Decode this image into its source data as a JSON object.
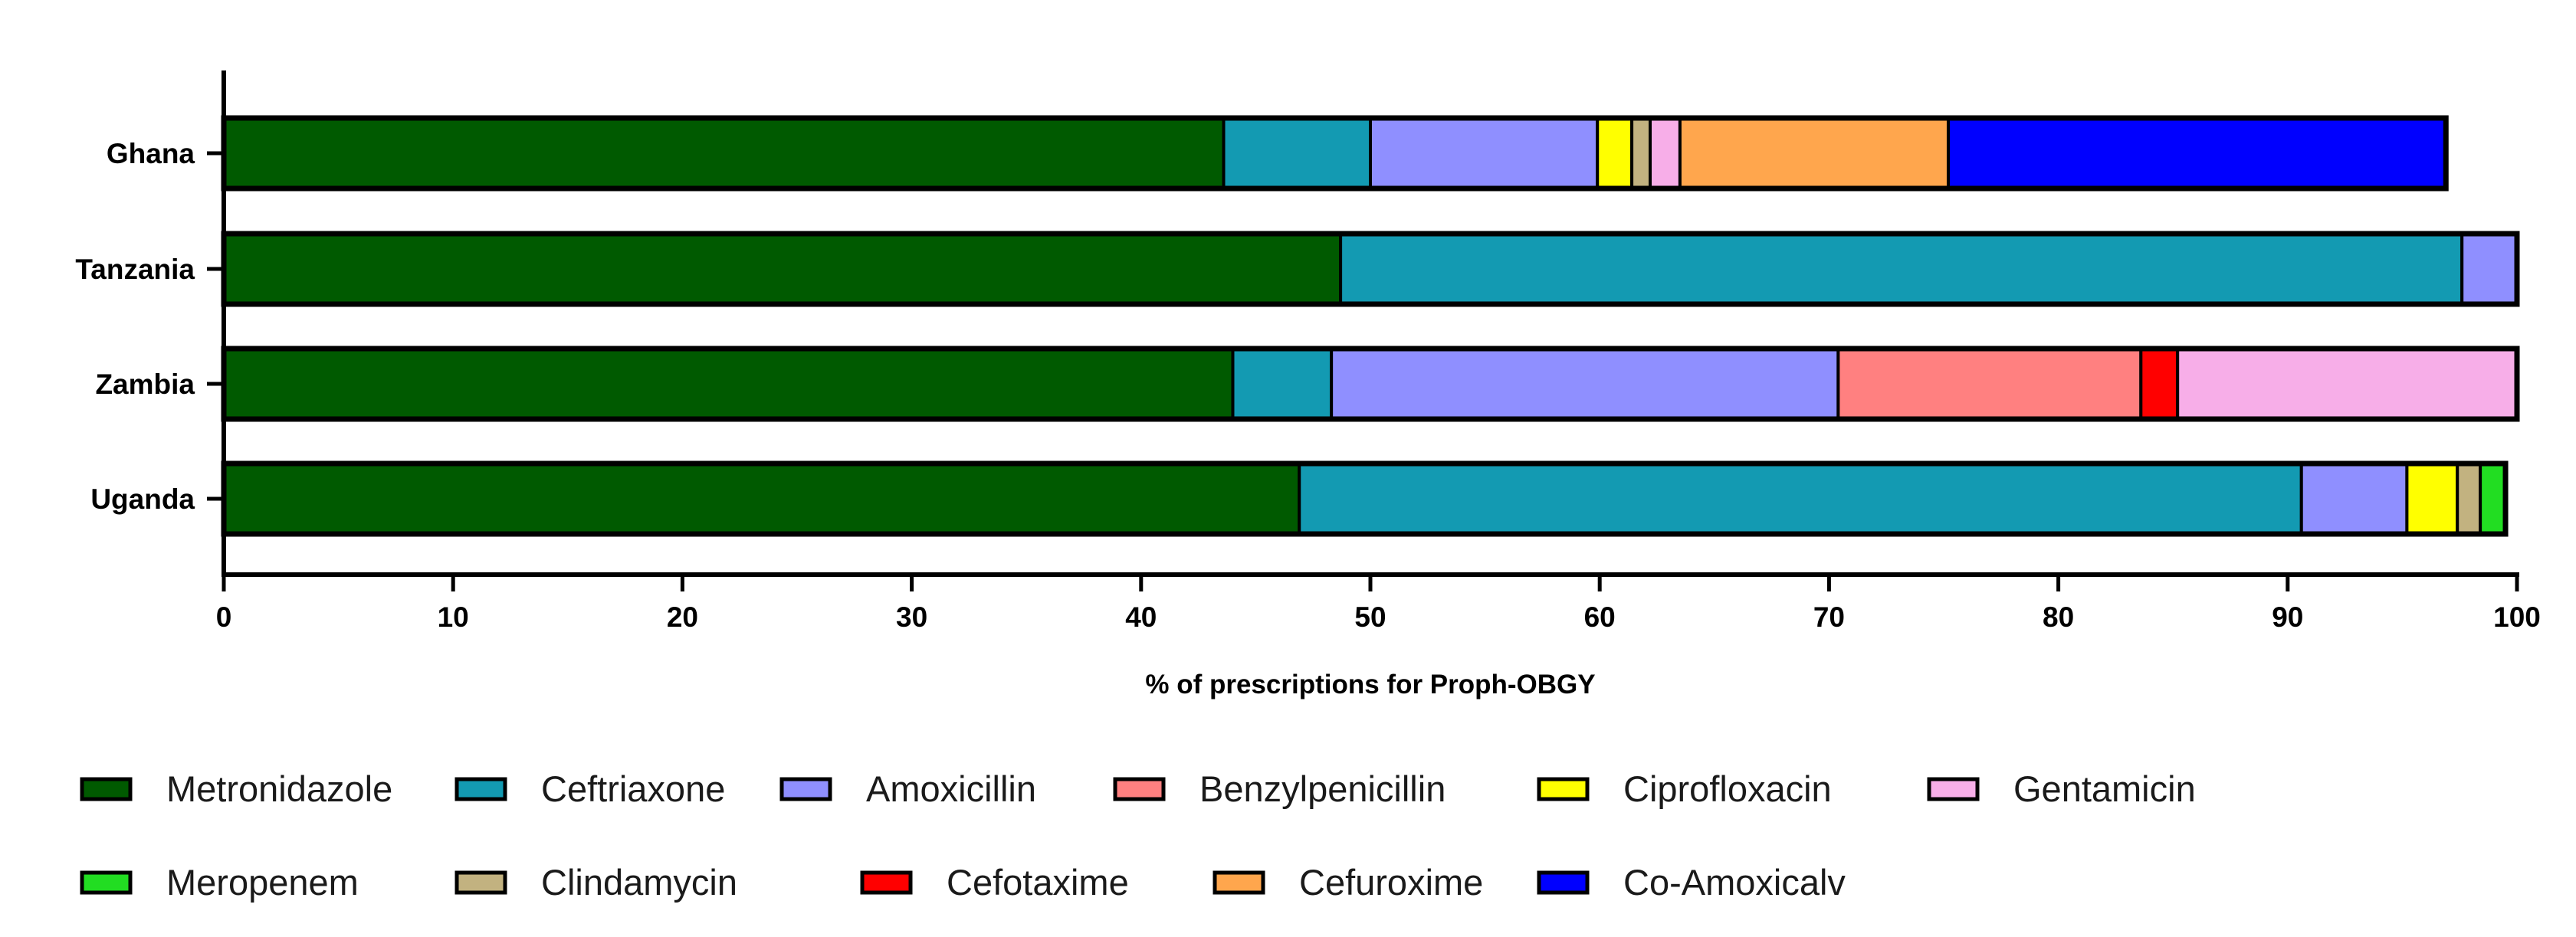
{
  "chart_data": {
    "type": "bar",
    "orientation": "horizontal",
    "stacked": true,
    "categories": [
      "Ghana",
      "Tanzania",
      "Zambia",
      "Uganda"
    ],
    "series": [
      {
        "name": "Metronidazole",
        "color": "#005a00",
        "values": [
          43.6,
          48.7,
          44.0,
          46.9
        ]
      },
      {
        "name": "Ceftriaxone",
        "color": "#139ab2",
        "values": [
          6.4,
          48.9,
          4.3,
          43.7
        ]
      },
      {
        "name": "Amoxicillin",
        "color": "#8f8fff",
        "values": [
          9.9,
          2.4,
          22.1,
          4.6
        ]
      },
      {
        "name": "Benzylpenicillin",
        "color": "#ff8080",
        "values": [
          0,
          0,
          13.2,
          0
        ]
      },
      {
        "name": "Ciprofloxacin",
        "color": "#ffff00",
        "values": [
          1.5,
          0,
          0,
          2.2
        ]
      },
      {
        "name": "Gentamicin",
        "color": "#f7aee8",
        "values": [
          1.3,
          0,
          14.8,
          0
        ]
      },
      {
        "name": "Meropenem",
        "color": "#22dd22",
        "values": [
          0,
          0,
          0,
          1.1
        ]
      },
      {
        "name": "Clindamycin",
        "color": "#c2b280",
        "values": [
          0.8,
          0,
          0,
          1.0
        ]
      },
      {
        "name": "Cefotaxime",
        "color": "#ff0000",
        "values": [
          0,
          0,
          1.6,
          0
        ]
      },
      {
        "name": "Cefuroxime",
        "color": "#ffa64d",
        "values": [
          11.7,
          0,
          0,
          0
        ]
      },
      {
        "name": "Co-Amoxicalv",
        "color": "#0000ff",
        "values": [
          21.7,
          0,
          0,
          0
        ]
      }
    ],
    "stack_order": [
      [
        "Metronidazole",
        "Ceftriaxone",
        "Amoxicillin",
        "Ciprofloxacin",
        "Clindamycin",
        "Gentamicin",
        "Cefuroxime",
        "Co-Amoxicalv"
      ],
      [
        "Metronidazole",
        "Ceftriaxone",
        "Amoxicillin"
      ],
      [
        "Metronidazole",
        "Ceftriaxone",
        "Amoxicillin",
        "Benzylpenicillin",
        "Cefotaxime",
        "Gentamicin"
      ],
      [
        "Metronidazole",
        "Ceftriaxone",
        "Amoxicillin",
        "Ciprofloxacin",
        "Clindamycin",
        "Meropenem"
      ]
    ],
    "title": "",
    "xlabel": "% of prescriptions for Proph-OBGY",
    "ylabel": "",
    "xlim": [
      0,
      100
    ],
    "xticks": [
      "0",
      "10",
      "20",
      "30",
      "40",
      "50",
      "60",
      "70",
      "80",
      "90",
      "100"
    ],
    "grid": false,
    "legend_position": "bottom",
    "legend_rows": [
      [
        "Metronidazole",
        "Ceftriaxone",
        "Amoxicillin",
        "Benzylpenicillin",
        "Ciprofloxacin",
        "Gentamicin"
      ],
      [
        "Meropenem",
        "Clindamycin",
        "Cefotaxime",
        "Cefuroxime",
        "Co-Amoxicalv"
      ]
    ]
  }
}
